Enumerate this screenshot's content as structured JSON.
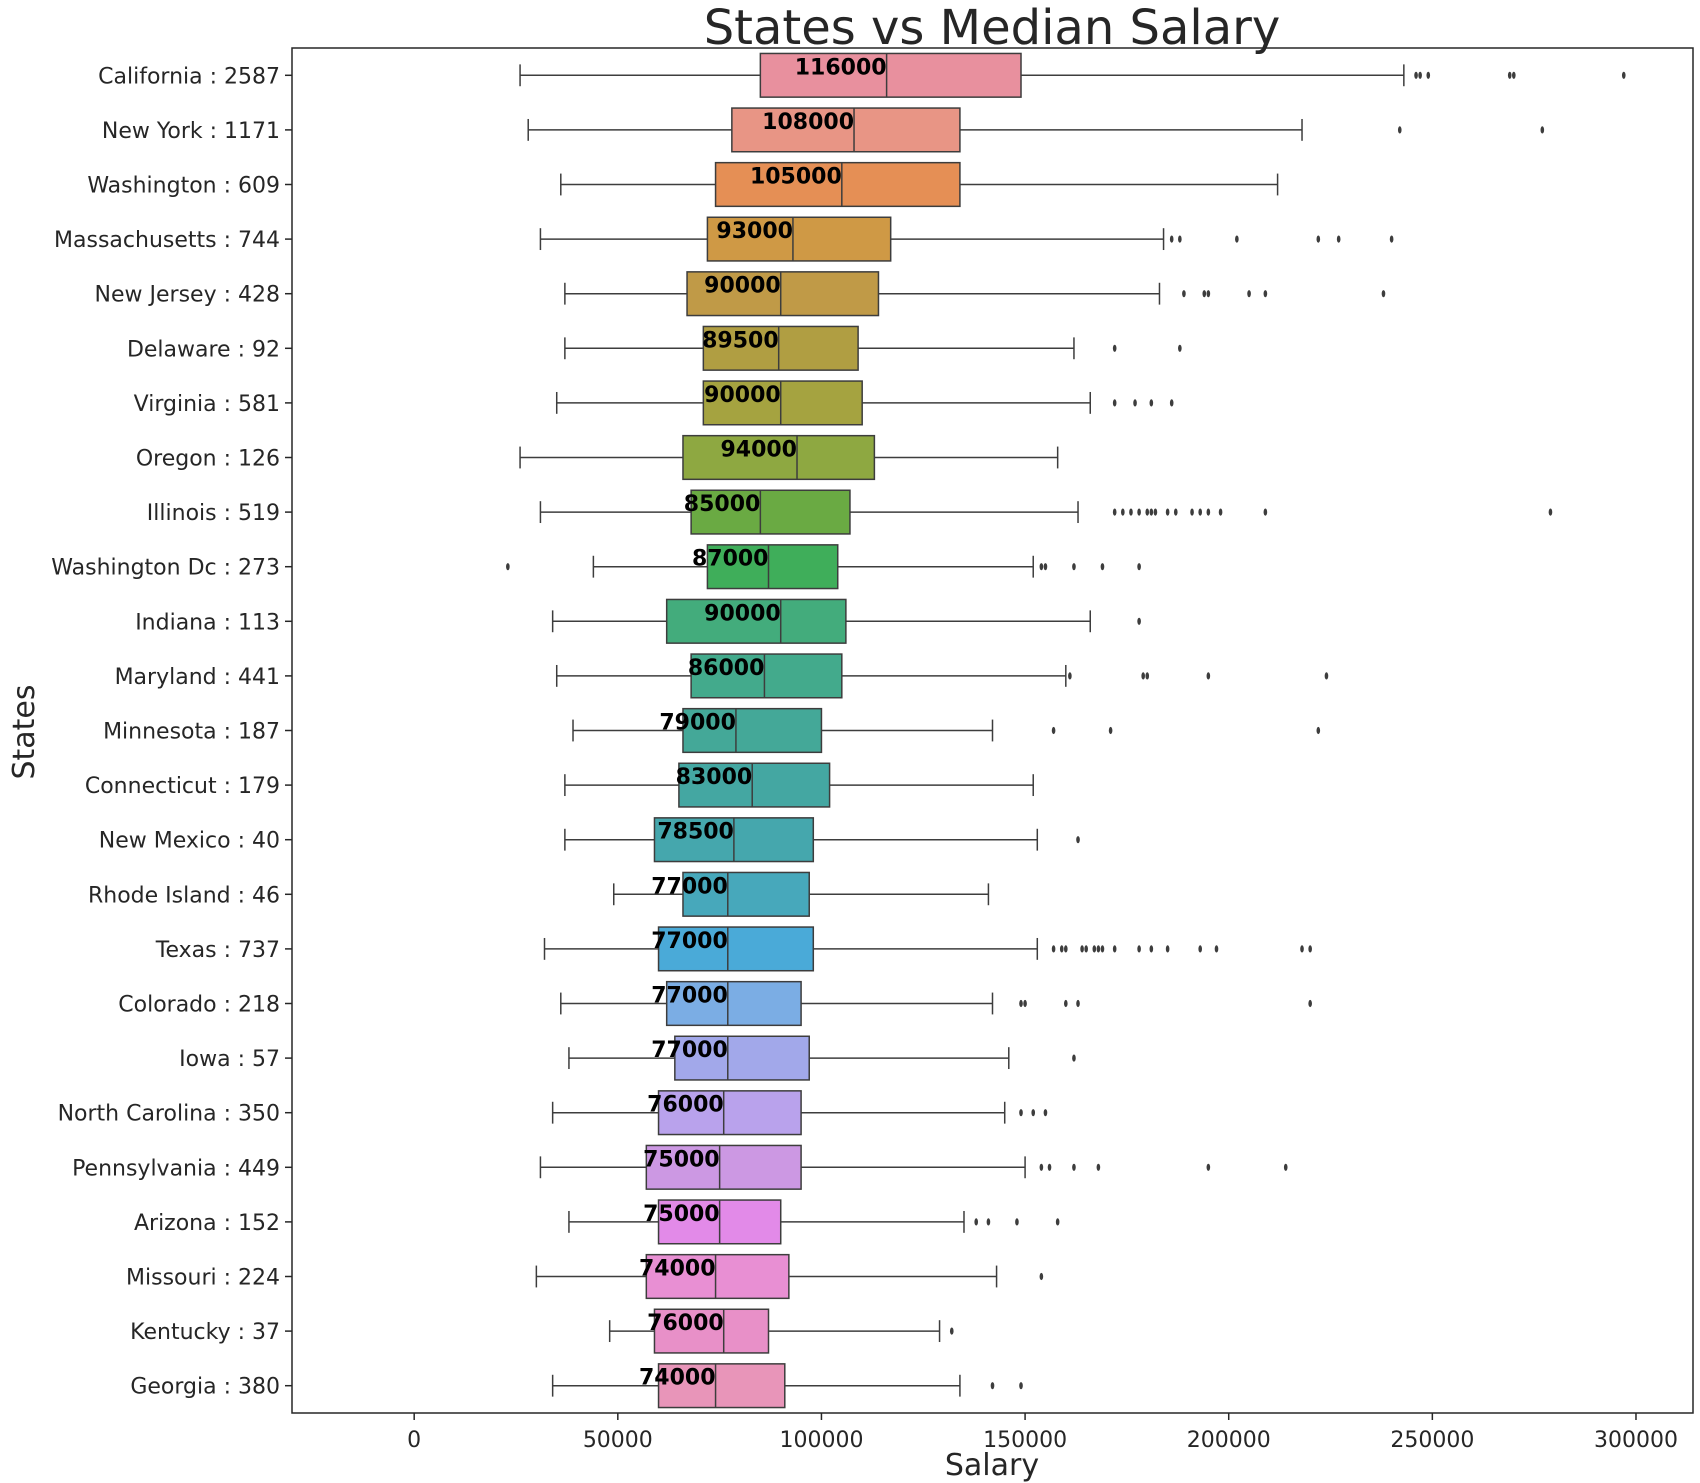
{
  "chart_data": {
    "type": "boxplot",
    "orientation": "horizontal",
    "title": "States vs Median Salary",
    "xlabel": "Salary",
    "ylabel": "States",
    "xlim": [
      -30000,
      314000
    ],
    "xticks": [
      0,
      50000,
      100000,
      150000,
      200000,
      250000,
      300000
    ],
    "xtick_labels": [
      "0",
      "50000",
      "100000",
      "150000",
      "200000",
      "250000",
      "300000"
    ],
    "grid": false,
    "categories": [
      {
        "label": "California : 2587",
        "median_label": "116000",
        "color": "#e8909e",
        "whisker_low": 26000,
        "q1": 85000,
        "median": 116000,
        "q3": 149000,
        "whisker_high": 243000,
        "outliers": [
          246000,
          247000,
          249000,
          269000,
          270000,
          297000
        ]
      },
      {
        "label": "New York : 1171",
        "median_label": "108000",
        "color": "#e89585",
        "whisker_low": 28000,
        "q1": 78000,
        "median": 108000,
        "q3": 134000,
        "whisker_high": 218000,
        "outliers": [
          242000,
          277000
        ]
      },
      {
        "label": "Washington : 609",
        "median_label": "105000",
        "color": "#e58f55",
        "whisker_low": 36000,
        "q1": 74000,
        "median": 105000,
        "q3": 134000,
        "whisker_high": 212000,
        "outliers": []
      },
      {
        "label": "Massachusetts : 744",
        "median_label": "93000",
        "color": "#cf9945",
        "whisker_low": 31000,
        "q1": 72000,
        "median": 93000,
        "q3": 117000,
        "whisker_high": 184000,
        "outliers": [
          186000,
          188000,
          202000,
          222000,
          227000,
          240000
        ]
      },
      {
        "label": "New Jersey : 428",
        "median_label": "90000",
        "color": "#c09a47",
        "whisker_low": 37000,
        "q1": 67000,
        "median": 90000,
        "q3": 114000,
        "whisker_high": 183000,
        "outliers": [
          189000,
          194000,
          195000,
          205000,
          209000,
          238000
        ]
      },
      {
        "label": "Delaware : 92",
        "median_label": "89500",
        "color": "#b09e42",
        "whisker_low": 37000,
        "q1": 71000,
        "median": 89500,
        "q3": 109000,
        "whisker_high": 162000,
        "outliers": [
          172000,
          188000
        ]
      },
      {
        "label": "Virginia : 581",
        "median_label": "90000",
        "color": "#a5a340",
        "whisker_low": 35000,
        "q1": 71000,
        "median": 90000,
        "q3": 110000,
        "whisker_high": 166000,
        "outliers": [
          172000,
          177000,
          181000,
          186000
        ]
      },
      {
        "label": "Oregon : 126",
        "median_label": "94000",
        "color": "#8ea841",
        "whisker_low": 26000,
        "q1": 66000,
        "median": 94000,
        "q3": 113000,
        "whisker_high": 158000,
        "outliers": []
      },
      {
        "label": "Illinois : 519",
        "median_label": "85000",
        "color": "#6aaa43",
        "whisker_low": 31000,
        "q1": 68000,
        "median": 85000,
        "q3": 107000,
        "whisker_high": 163000,
        "outliers": [
          172000,
          174000,
          176000,
          178000,
          180000,
          181000,
          182000,
          185000,
          187000,
          191000,
          193000,
          195000,
          198000,
          209000,
          279000
        ]
      },
      {
        "label": "Washington Dc : 273",
        "median_label": "87000",
        "color": "#3fae5a",
        "whisker_low": 44000,
        "q1": 72000,
        "median": 87000,
        "q3": 104000,
        "whisker_high": 152000,
        "outliers": [
          23000,
          154000,
          155000,
          162000,
          169000,
          178000
        ]
      },
      {
        "label": "Indiana : 113",
        "median_label": "90000",
        "color": "#43ac7c",
        "whisker_low": 34000,
        "q1": 62000,
        "median": 90000,
        "q3": 106000,
        "whisker_high": 166000,
        "outliers": [
          178000
        ]
      },
      {
        "label": "Maryland : 441",
        "median_label": "86000",
        "color": "#43aa8c",
        "whisker_low": 35000,
        "q1": 68000,
        "median": 86000,
        "q3": 105000,
        "whisker_high": 160000,
        "outliers": [
          161000,
          179000,
          180000,
          195000,
          224000
        ]
      },
      {
        "label": "Minnesota : 187",
        "median_label": "79000",
        "color": "#44a898",
        "whisker_low": 39000,
        "q1": 66000,
        "median": 79000,
        "q3": 100000,
        "whisker_high": 142000,
        "outliers": [
          157000,
          171000,
          222000
        ]
      },
      {
        "label": "Connecticut : 179",
        "median_label": "83000",
        "color": "#44a7a2",
        "whisker_low": 37000,
        "q1": 65000,
        "median": 83000,
        "q3": 102000,
        "whisker_high": 152000,
        "outliers": []
      },
      {
        "label": "New Mexico : 40",
        "median_label": "78500",
        "color": "#45a7ad",
        "whisker_low": 37000,
        "q1": 59000,
        "median": 78500,
        "q3": 98000,
        "whisker_high": 153000,
        "outliers": [
          163000
        ]
      },
      {
        "label": "Rhode Island : 46",
        "median_label": "77000",
        "color": "#47a8bb",
        "whisker_low": 49000,
        "q1": 66000,
        "median": 77000,
        "q3": 97000,
        "whisker_high": 141000,
        "outliers": []
      },
      {
        "label": "Texas : 737",
        "median_label": "77000",
        "color": "#4aaad8",
        "whisker_low": 32000,
        "q1": 60000,
        "median": 77000,
        "q3": 98000,
        "whisker_high": 153000,
        "outliers": [
          157000,
          159000,
          160000,
          164000,
          165000,
          167000,
          168000,
          169000,
          172000,
          178000,
          181000,
          185000,
          193000,
          197000,
          218000,
          220000
        ]
      },
      {
        "label": "Colorado : 218",
        "median_label": "77000",
        "color": "#7bade4",
        "whisker_low": 36000,
        "q1": 62000,
        "median": 77000,
        "q3": 95000,
        "whisker_high": 142000,
        "outliers": [
          149000,
          150000,
          160000,
          163000,
          220000
        ]
      },
      {
        "label": "Iowa : 57",
        "median_label": "77000",
        "color": "#a2a8ea",
        "whisker_low": 38000,
        "q1": 64000,
        "median": 77000,
        "q3": 97000,
        "whisker_high": 146000,
        "outliers": [
          162000
        ]
      },
      {
        "label": "North Carolina : 350",
        "median_label": "76000",
        "color": "#b9a2ec",
        "whisker_low": 34000,
        "q1": 60000,
        "median": 76000,
        "q3": 95000,
        "whisker_high": 145000,
        "outliers": [
          149000,
          152000,
          155000
        ]
      },
      {
        "label": "Pennsylvania : 449",
        "median_label": "75000",
        "color": "#cc98e3",
        "whisker_low": 31000,
        "q1": 57000,
        "median": 75000,
        "q3": 95000,
        "whisker_high": 150000,
        "outliers": [
          154000,
          156000,
          162000,
          168000,
          195000,
          214000
        ]
      },
      {
        "label": "Arizona : 152",
        "median_label": "75000",
        "color": "#e28ae8",
        "whisker_low": 38000,
        "q1": 60000,
        "median": 75000,
        "q3": 90000,
        "whisker_high": 135000,
        "outliers": [
          138000,
          141000,
          148000,
          158000
        ]
      },
      {
        "label": "Missouri : 224",
        "median_label": "74000",
        "color": "#e88fd3",
        "whisker_low": 30000,
        "q1": 57000,
        "median": 74000,
        "q3": 92000,
        "whisker_high": 143000,
        "outliers": [
          154000
        ]
      },
      {
        "label": "Kentucky : 37",
        "median_label": "76000",
        "color": "#e890c8",
        "whisker_low": 48000,
        "q1": 59000,
        "median": 76000,
        "q3": 87000,
        "whisker_high": 129000,
        "outliers": [
          132000
        ]
      },
      {
        "label": "Georgia : 380",
        "median_label": "74000",
        "color": "#e895b9",
        "whisker_low": 34000,
        "q1": 60000,
        "median": 74000,
        "q3": 91000,
        "whisker_high": 134000,
        "outliers": [
          142000,
          149000
        ]
      }
    ]
  }
}
